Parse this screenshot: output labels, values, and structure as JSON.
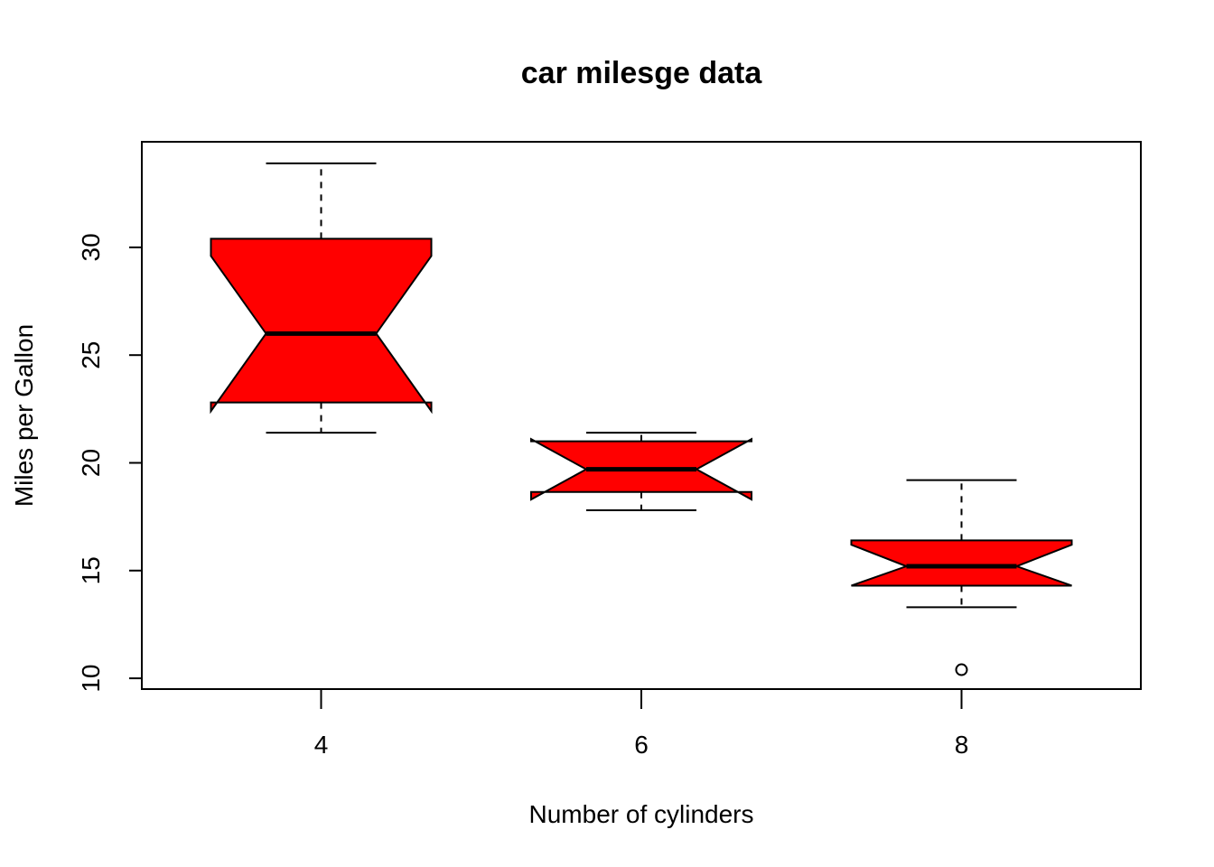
{
  "chart_data": {
    "type": "box",
    "title": "car milesge data",
    "xlabel": "Number of cylinders",
    "ylabel": "Miles per Gallon",
    "categories": [
      "4",
      "6",
      "8"
    ],
    "notched": true,
    "box_color": "#ff0000",
    "ylim": [
      9.5,
      34.9
    ],
    "yticks": [
      10,
      15,
      20,
      25,
      30
    ],
    "series": [
      {
        "category": "4",
        "whisker_low": 21.4,
        "q1": 22.8,
        "median": 26.0,
        "q3": 30.4,
        "whisker_high": 33.9,
        "notch_low": 22.4,
        "notch_high": 29.6,
        "outliers": []
      },
      {
        "category": "6",
        "whisker_low": 17.8,
        "q1": 18.65,
        "median": 19.7,
        "q3": 21.0,
        "whisker_high": 21.4,
        "notch_low": 18.3,
        "notch_high": 21.1,
        "outliers": []
      },
      {
        "category": "8",
        "whisker_low": 13.3,
        "q1": 14.3,
        "median": 15.2,
        "q3": 16.4,
        "whisker_high": 19.2,
        "notch_low": 14.3,
        "notch_high": 16.2,
        "outliers": [
          10.4
        ]
      }
    ]
  }
}
